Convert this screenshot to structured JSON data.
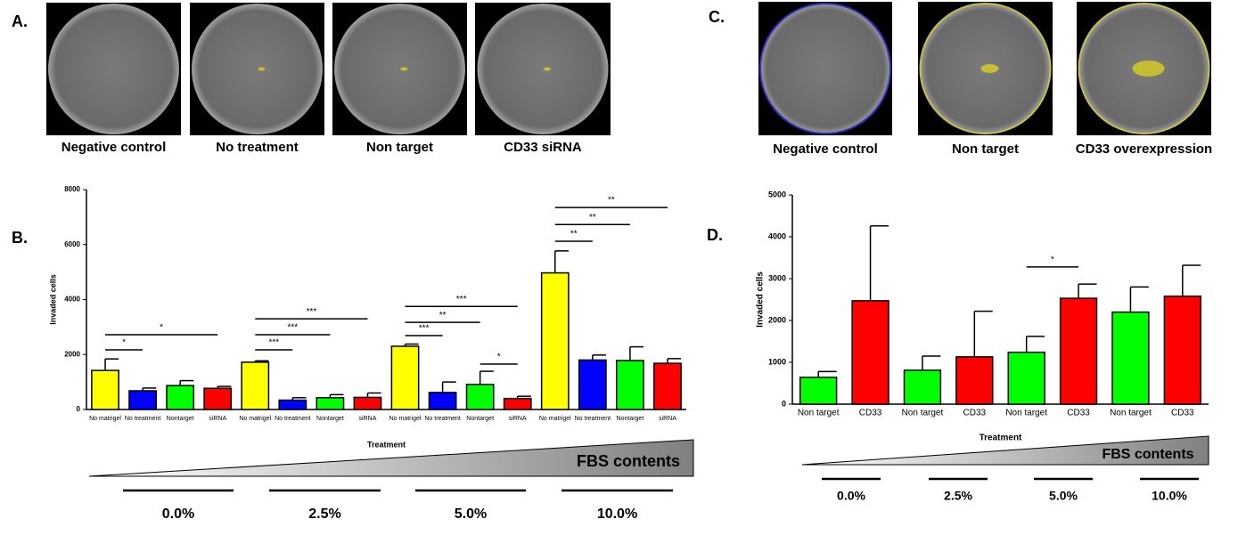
{
  "panel_labels": [
    "A.",
    "B.",
    "C.",
    "D."
  ],
  "images_a": [
    "Negative control",
    "No treatment",
    "Non target",
    "CD33 siRNA"
  ],
  "images_c": [
    "Negative control",
    "Non target",
    "CD33 overexpression"
  ],
  "fbs": {
    "label": "FBS contents",
    "levels": [
      "0.0%",
      "2.5%",
      "5.0%",
      "10.0%"
    ]
  },
  "chart_data": [
    {
      "type": "bar",
      "ylabel": "Invaded cells",
      "xlabel": "Treatment",
      "categories": [
        "No matrigel",
        "No treatment",
        "Nontarget",
        "siRNA",
        "No matrigel",
        "No treatment",
        "Nontarget",
        "siRNA",
        "No matrigel",
        "No treatment",
        "Nontarget",
        "siRNA",
        "No matrigel",
        "No treatment",
        "Nontarget",
        "siRNA"
      ],
      "values": [
        1420,
        680,
        870,
        770,
        1720,
        340,
        430,
        440,
        2300,
        620,
        910,
        400,
        4970,
        1800,
        1780,
        1680
      ],
      "errors": [
        420,
        100,
        180,
        70,
        50,
        90,
        110,
        160,
        80,
        380,
        480,
        80,
        800,
        180,
        500,
        170
      ],
      "colors": [
        "#ffff00",
        "#0000ff",
        "#00ff00",
        "#ff0000",
        "#ffff00",
        "#0000ff",
        "#00ff00",
        "#ff0000",
        "#ffff00",
        "#0000ff",
        "#00ff00",
        "#ff0000",
        "#ffff00",
        "#0000ff",
        "#00ff00",
        "#ff0000"
      ],
      "ylim": [
        0,
        8000
      ],
      "yticks": [
        0,
        2000,
        4000,
        6000,
        8000
      ],
      "significance": [
        {
          "from": 0,
          "to": 3,
          "y": 2720,
          "label": "*"
        },
        {
          "from": 0,
          "to": 1,
          "y": 2170,
          "label": "*"
        },
        {
          "from": 4,
          "to": 7,
          "y": 3300,
          "label": "***"
        },
        {
          "from": 4,
          "to": 6,
          "y": 2720,
          "label": "***"
        },
        {
          "from": 4,
          "to": 5,
          "y": 2170,
          "label": "***"
        },
        {
          "from": 8,
          "to": 11,
          "y": 3750,
          "label": "***"
        },
        {
          "from": 8,
          "to": 10,
          "y": 3170,
          "label": "**"
        },
        {
          "from": 8,
          "to": 9,
          "y": 2690,
          "label": "***"
        },
        {
          "from": 10,
          "to": 11,
          "y": 1650,
          "label": "*"
        },
        {
          "from": 12,
          "to": 15,
          "y": 7350,
          "label": "**"
        },
        {
          "from": 12,
          "to": 14,
          "y": 6730,
          "label": "**"
        },
        {
          "from": 12,
          "to": 13,
          "y": 6120,
          "label": "**"
        }
      ]
    },
    {
      "type": "bar",
      "ylabel": "Invaded cells",
      "xlabel": "Treatment",
      "categories": [
        "Non target",
        "CD33",
        "Non target",
        "CD33",
        "Non target",
        "CD33",
        "Non target",
        "CD33"
      ],
      "values": [
        640,
        2470,
        810,
        1130,
        1240,
        2530,
        2200,
        2580
      ],
      "errors": [
        140,
        1790,
        340,
        1090,
        380,
        340,
        600,
        740
      ],
      "colors": [
        "#00ff00",
        "#ff0000",
        "#00ff00",
        "#ff0000",
        "#00ff00",
        "#ff0000",
        "#00ff00",
        "#ff0000"
      ],
      "ylim": [
        0,
        5000
      ],
      "yticks": [
        0,
        1000,
        2000,
        3000,
        4000,
        5000
      ],
      "significance": [
        {
          "from": 4,
          "to": 5,
          "y": 3280,
          "label": "*"
        }
      ]
    }
  ]
}
